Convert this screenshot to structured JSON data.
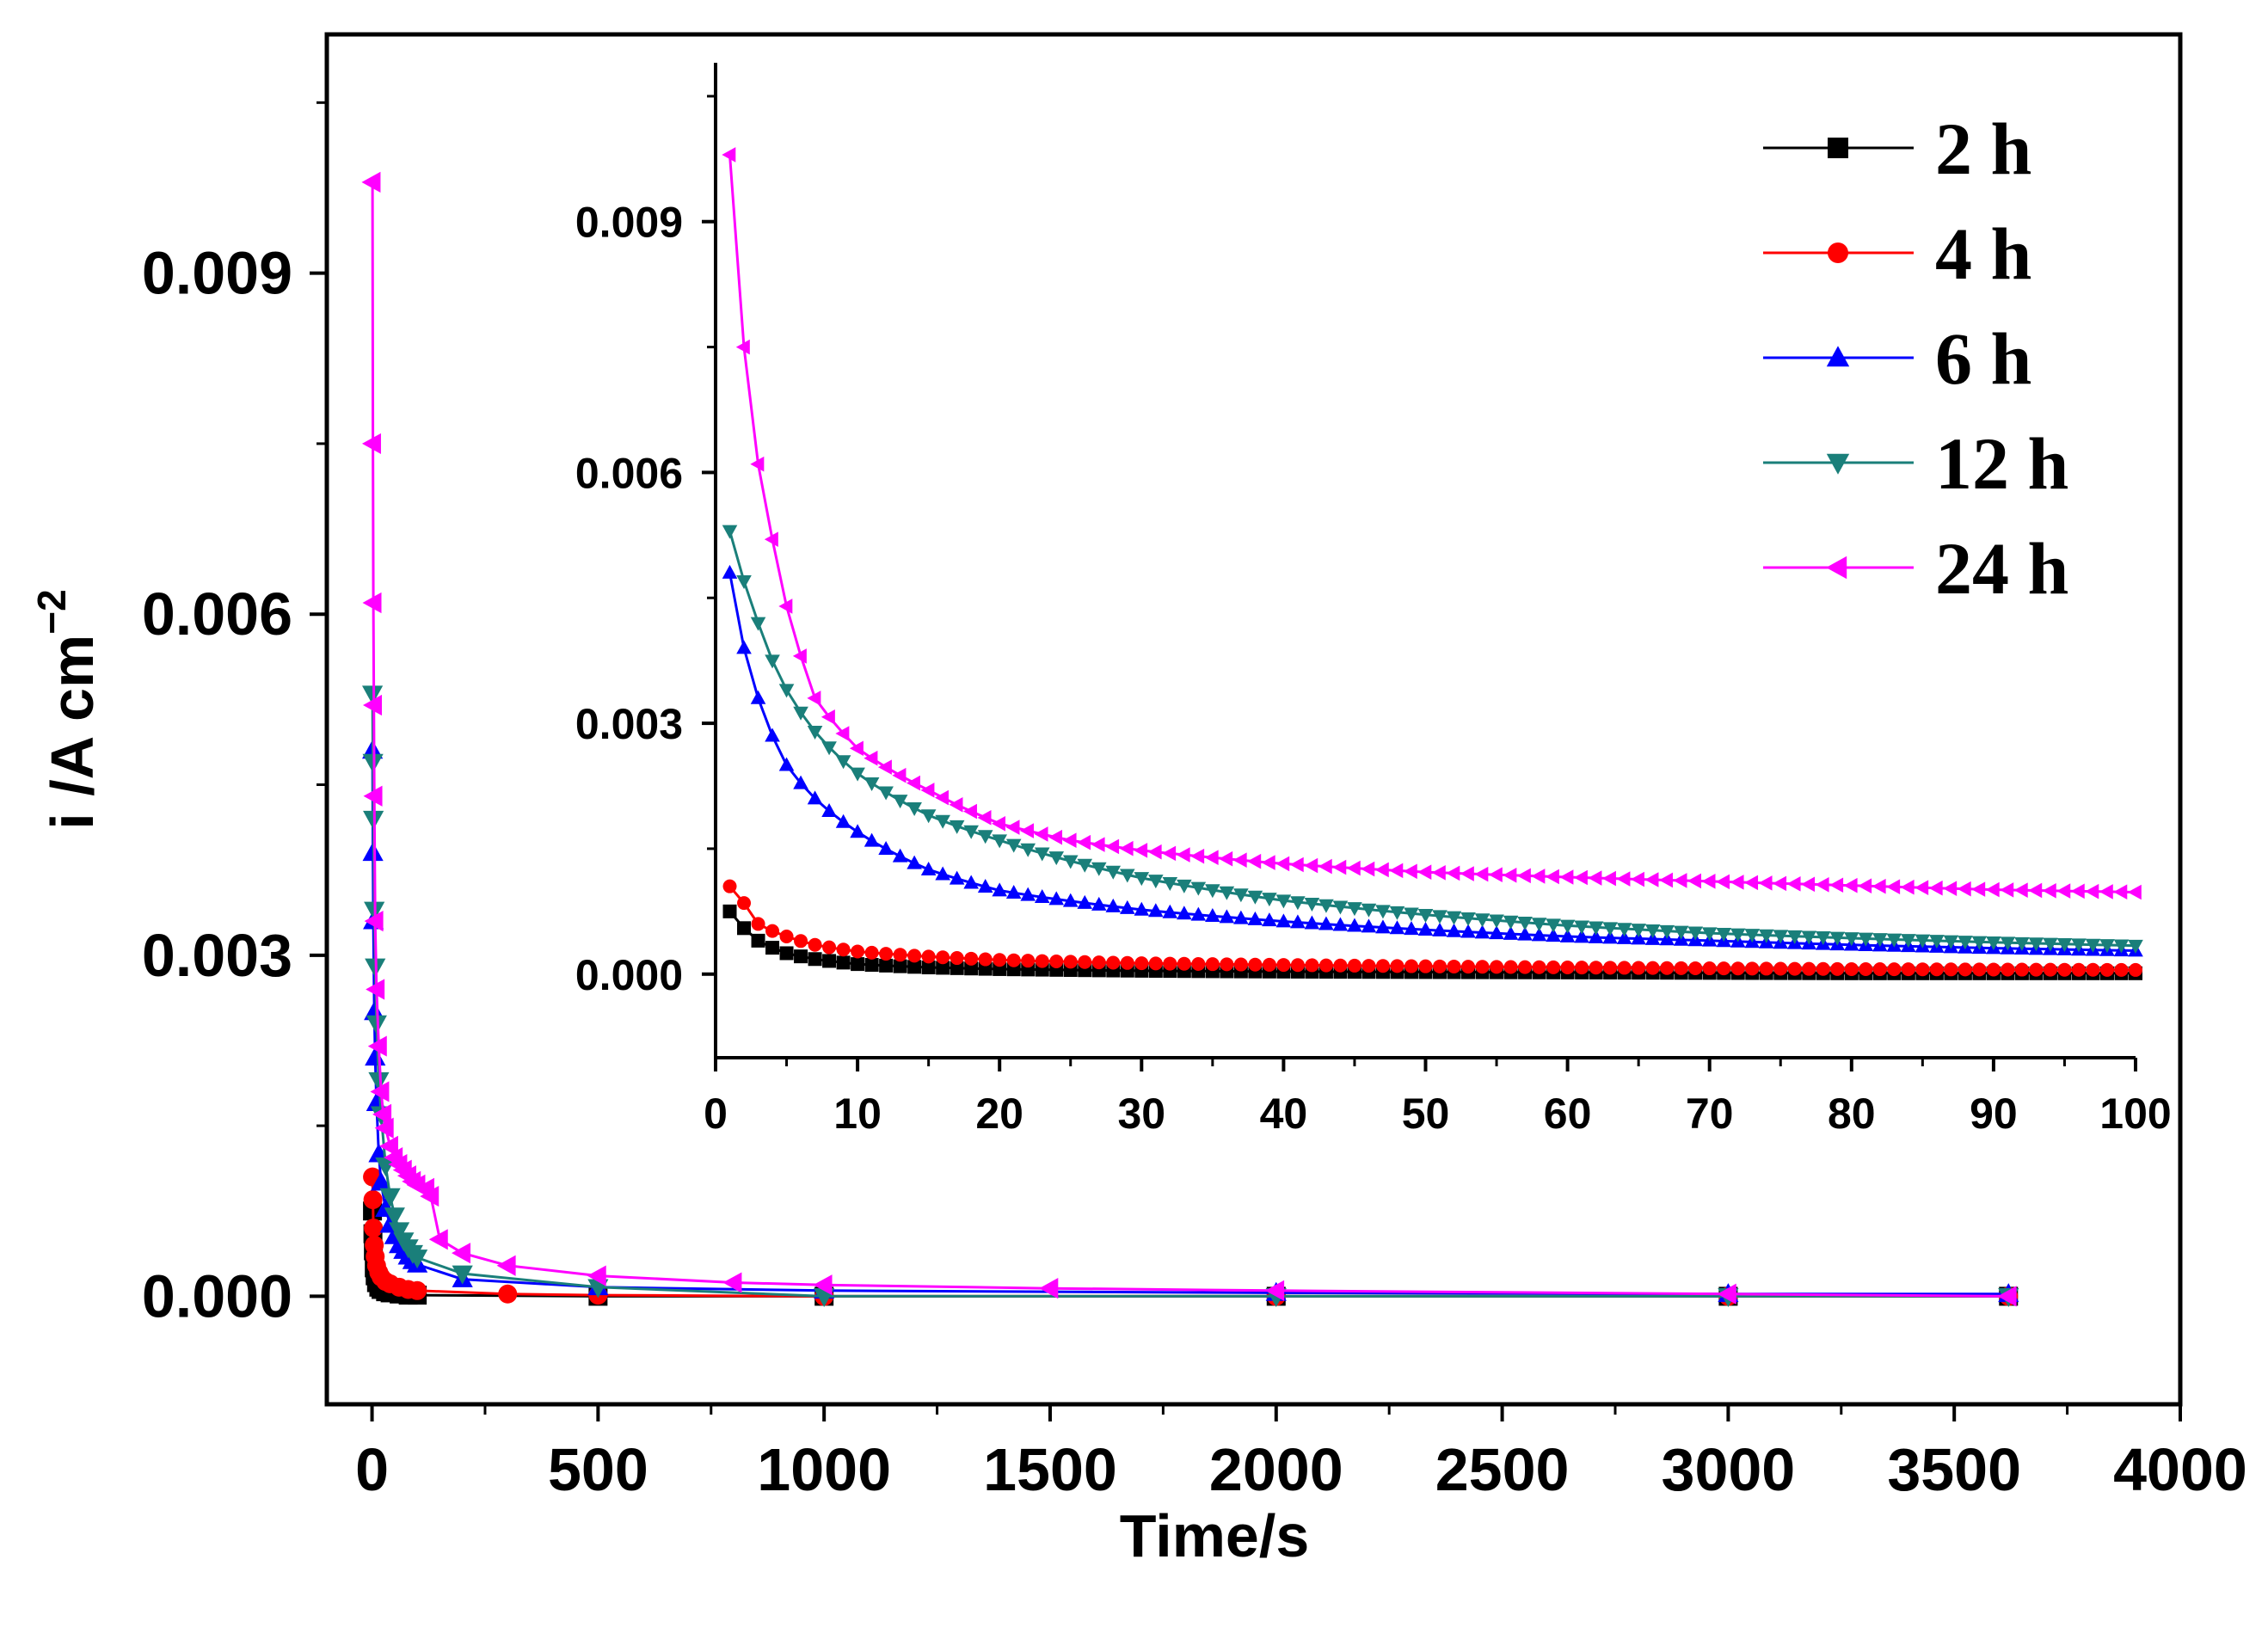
{
  "chart_data": {
    "type": "line",
    "main": {
      "xlabel": "Time/s",
      "ylabel_prefix": "i /A cm",
      "ylabel_exp": "−2",
      "xlim": [
        -100,
        4000
      ],
      "ylim": [
        -0.00095,
        0.0111
      ],
      "xticks": [
        {
          "v": 0,
          "label": "0"
        },
        {
          "v": 500,
          "label": "500"
        },
        {
          "v": 1000,
          "label": "1000"
        },
        {
          "v": 1500,
          "label": "1500"
        },
        {
          "v": 2000,
          "label": "2000"
        },
        {
          "v": 2500,
          "label": "2500"
        },
        {
          "v": 3000,
          "label": "3000"
        },
        {
          "v": 3500,
          "label": "3500"
        },
        {
          "v": 4000,
          "label": "4000"
        }
      ],
      "yticks": [
        {
          "v": 0,
          "label": "0.000"
        },
        {
          "v": 0.003,
          "label": "0.003"
        },
        {
          "v": 0.006,
          "label": "0.006"
        },
        {
          "v": 0.009,
          "label": "0.009"
        }
      ]
    },
    "inset": {
      "xlim": [
        0,
        100
      ],
      "ylim": [
        -0.001,
        0.0109
      ],
      "xticks": [
        {
          "v": 0,
          "label": "0"
        },
        {
          "v": 10,
          "label": "10"
        },
        {
          "v": 20,
          "label": "20"
        },
        {
          "v": 30,
          "label": "30"
        },
        {
          "v": 40,
          "label": "40"
        },
        {
          "v": 50,
          "label": "50"
        },
        {
          "v": 60,
          "label": "60"
        },
        {
          "v": 70,
          "label": "70"
        },
        {
          "v": 80,
          "label": "80"
        },
        {
          "v": 90,
          "label": "90"
        },
        {
          "v": 100,
          "label": "100"
        }
      ],
      "yticks": [
        {
          "v": 0,
          "label": "0.000"
        },
        {
          "v": 0.003,
          "label": "0.003"
        },
        {
          "v": 0.006,
          "label": "0.006"
        },
        {
          "v": 0.009,
          "label": "0.009"
        }
      ]
    },
    "series": [
      {
        "name": "2 h",
        "color": "#000000",
        "marker": "square",
        "x": [
          1,
          2,
          3,
          5,
          7,
          10,
          15,
          20,
          30,
          40,
          60,
          80,
          100,
          500,
          1000,
          2000,
          3000,
          3620
        ],
        "y": [
          0.00075,
          0.00055,
          0.0004,
          0.00025,
          0.00018,
          0.00012,
          8e-05,
          6e-05,
          4e-05,
          3e-05,
          2e-05,
          1e-05,
          1e-05,
          0.0,
          0.0,
          0.0,
          0.0,
          0.0
        ]
      },
      {
        "name": "4 h",
        "color": "#ff0000",
        "marker": "circle",
        "x": [
          1,
          2,
          3,
          5,
          7,
          10,
          15,
          20,
          30,
          40,
          60,
          80,
          100,
          300,
          500,
          1000,
          2000,
          3000,
          3620
        ],
        "y": [
          0.00105,
          0.00085,
          0.0006,
          0.00045,
          0.00035,
          0.00027,
          0.00021,
          0.00017,
          0.00013,
          0.00011,
          8e-05,
          6e-05,
          5e-05,
          2e-05,
          1e-05,
          0.0,
          0.0,
          0.0,
          0.0
        ]
      },
      {
        "name": "6 h",
        "color": "#0000ff",
        "marker": "triangle-up",
        "x": [
          1,
          2,
          3,
          5,
          7,
          10,
          15,
          20,
          30,
          40,
          50,
          60,
          70,
          80,
          90,
          100,
          200,
          500,
          1000,
          2000,
          3000,
          3620
        ],
        "y": [
          0.0048,
          0.0039,
          0.0033,
          0.0025,
          0.0021,
          0.0017,
          0.00125,
          0.001,
          0.00077,
          0.00063,
          0.00053,
          0.00045,
          0.0004,
          0.00035,
          0.00031,
          0.00028,
          0.00015,
          8e-05,
          5e-05,
          3e-05,
          2e-05,
          2e-05
        ]
      },
      {
        "name": "12 h",
        "color": "#1a7f7a",
        "marker": "triangle-down",
        "x": [
          1,
          2,
          3,
          5,
          7,
          10,
          15,
          20,
          30,
          40,
          50,
          60,
          70,
          80,
          90,
          100,
          200,
          500,
          1000,
          2000,
          3000,
          3620
        ],
        "y": [
          0.0053,
          0.0047,
          0.0042,
          0.0034,
          0.0029,
          0.0024,
          0.0019,
          0.0016,
          0.00115,
          0.00088,
          0.00071,
          0.00058,
          0.00049,
          0.00043,
          0.00038,
          0.00034,
          0.0002,
          8e-05,
          0.0,
          0.0,
          0.0,
          0.0
        ]
      },
      {
        "name": "24 h",
        "color": "#ff00ff",
        "marker": "triangle-left",
        "x": [
          1,
          2,
          3,
          4,
          5,
          7,
          10,
          15,
          20,
          25,
          30,
          40,
          50,
          60,
          70,
          80,
          90,
          100,
          120,
          130,
          150,
          200,
          300,
          500,
          800,
          1000,
          1500,
          2000,
          3000,
          3620
        ],
        "y": [
          0.0098,
          0.0075,
          0.0061,
          0.0052,
          0.0044,
          0.0033,
          0.0027,
          0.0022,
          0.0018,
          0.0016,
          0.00148,
          0.00132,
          0.00122,
          0.00116,
          0.00111,
          0.00106,
          0.00101,
          0.00098,
          0.00095,
          0.00088,
          0.0005,
          0.00038,
          0.00027,
          0.00018,
          0.00012,
          0.0001,
          7e-05,
          5e-05,
          2e-05,
          0.0
        ]
      }
    ]
  }
}
